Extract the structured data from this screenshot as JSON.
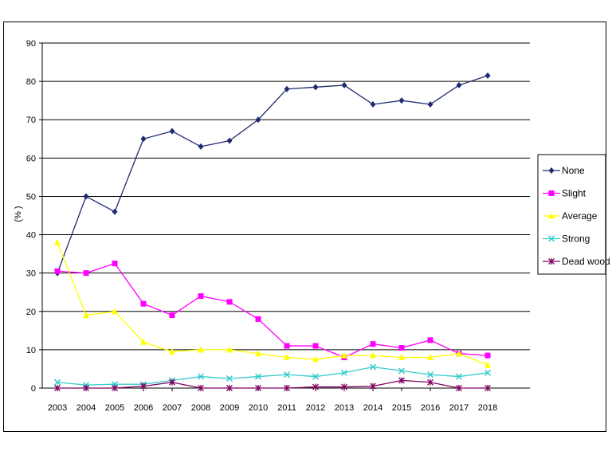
{
  "chart_data": {
    "type": "line",
    "title": "",
    "xlabel": "",
    "ylabel": "(% )",
    "ylim": [
      0,
      90
    ],
    "ytick_step": 10,
    "grid": "horizontal",
    "legend_position": "right",
    "categories": [
      "2003",
      "2004",
      "2005",
      "2006",
      "2007",
      "2008",
      "2009",
      "2010",
      "2011",
      "2012",
      "2013",
      "2014",
      "2015",
      "2016",
      "2017",
      "2018"
    ],
    "series": [
      {
        "name": "None",
        "color": "#1f2a6e",
        "marker": "diamond",
        "values": [
          30,
          50,
          46,
          65,
          67,
          63,
          64.5,
          70,
          78,
          78.5,
          79,
          74,
          75,
          74,
          79,
          81.5
        ]
      },
      {
        "name": "Slight",
        "color": "#ff00ff",
        "marker": "square",
        "values": [
          30.5,
          30,
          32.5,
          22,
          19,
          24,
          22.5,
          18,
          11,
          11,
          8,
          11.5,
          10.5,
          12.5,
          9,
          8.5
        ]
      },
      {
        "name": "Average",
        "color": "#ffff00",
        "marker": "triangle",
        "values": [
          38,
          19,
          20,
          12,
          9.5,
          10,
          10,
          9,
          8,
          7.5,
          8.5,
          8.5,
          8,
          8,
          9,
          6
        ]
      },
      {
        "name": "Strong",
        "color": "#33cccc",
        "marker": "x",
        "values": [
          1.5,
          0.8,
          1,
          1,
          2,
          3,
          2.5,
          3,
          3.5,
          3,
          4,
          5.5,
          4.5,
          3.5,
          3,
          4
        ]
      },
      {
        "name": "Dead wood",
        "color": "#800060",
        "marker": "star",
        "values": [
          0,
          0,
          0,
          0.5,
          1.5,
          0,
          0,
          0,
          0,
          0.3,
          0.3,
          0.5,
          2,
          1.5,
          0,
          0
        ]
      }
    ]
  }
}
